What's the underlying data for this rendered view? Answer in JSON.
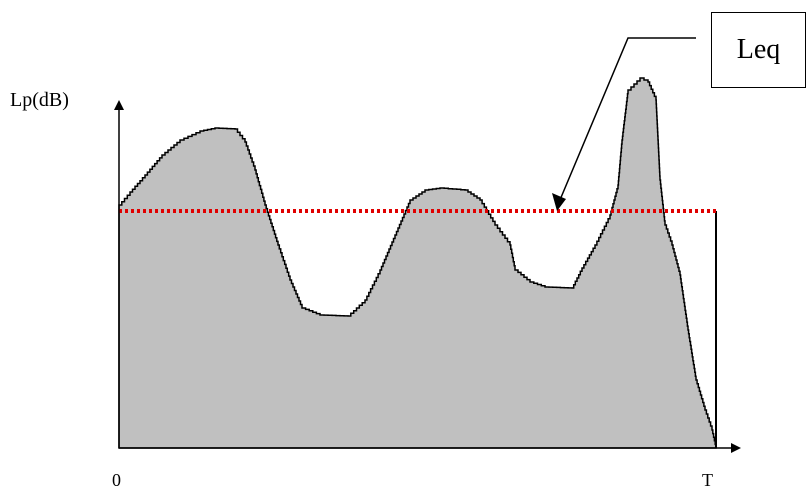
{
  "diagram": {
    "y_axis_label": "Lp(dB)",
    "x_origin_label": "0",
    "x_end_label": "T",
    "leq_label": "Leq",
    "colors": {
      "area_fill": "#c0c0c0",
      "outline": "#000000",
      "leq_line": "#e00000"
    }
  }
}
